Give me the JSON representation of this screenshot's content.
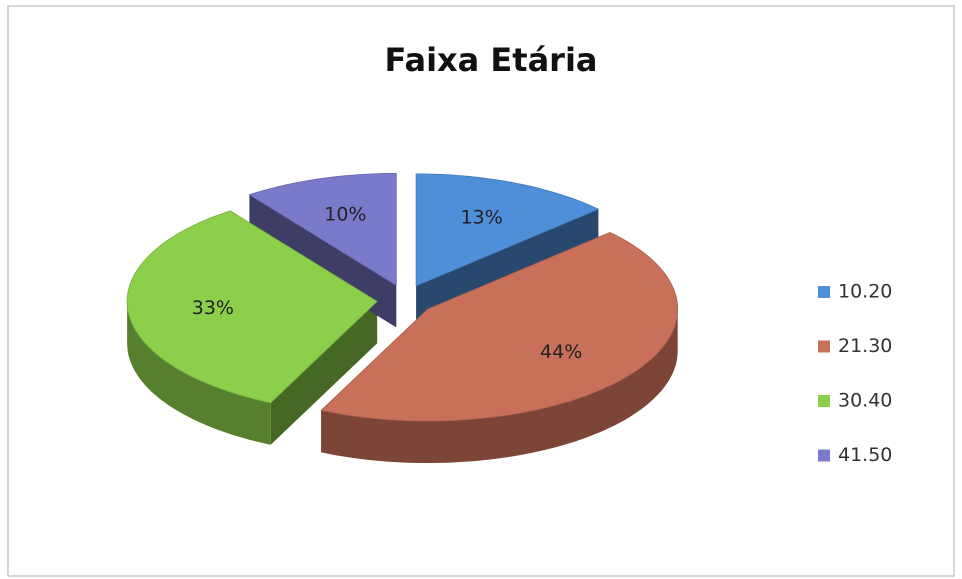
{
  "chart_data": {
    "type": "pie",
    "title": "Faixa Etária",
    "categories": [
      "10.20",
      "21.30",
      "30.40",
      "41.50"
    ],
    "values": [
      13,
      44,
      33,
      10
    ],
    "value_labels": [
      "13%",
      "44%",
      "33%",
      "10%"
    ],
    "colors": [
      "#4f8fd9",
      "#c8705a",
      "#8ccf4a",
      "#7b79c9"
    ],
    "legend": "right"
  }
}
